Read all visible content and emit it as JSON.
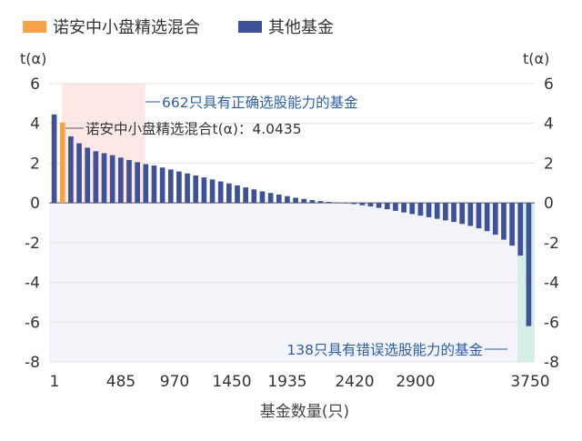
{
  "chart_data": {
    "type": "bar",
    "title": "",
    "legend": [
      {
        "label": "诺安中小盘精选混合",
        "color": "#F5A24A"
      },
      {
        "label": "其他基金",
        "color": "#3F5299"
      }
    ],
    "legend_position": "top-left",
    "xlabel": "基金数量(只)",
    "ylabel_left": "t(α)",
    "ylabel_right": "t(α)",
    "x_ticks": [
      "1",
      "485",
      "970",
      "1450",
      "1935",
      "2420",
      "2900",
      "3750"
    ],
    "y_ticks": [
      "6",
      "4",
      "2",
      "0",
      "-2",
      "-4",
      "-6",
      "-8"
    ],
    "ylim": [
      -8,
      6
    ],
    "grid": "horizontal",
    "highlight_index": 1,
    "series": [
      {
        "values": [
          4.45,
          4.04,
          3.35,
          3.0,
          2.78,
          2.6,
          2.5,
          2.4,
          2.28,
          2.16,
          2.05,
          1.95,
          1.88,
          1.78,
          1.68,
          1.58,
          1.48,
          1.38,
          1.28,
          1.18,
          1.08,
          0.98,
          0.88,
          0.78,
          0.68,
          0.58,
          0.5,
          0.42,
          0.34,
          0.26,
          0.2,
          0.14,
          0.09,
          0.05,
          0.02,
          -0.02,
          -0.06,
          -0.12,
          -0.18,
          -0.25,
          -0.32,
          -0.4,
          -0.48,
          -0.56,
          -0.64,
          -0.72,
          -0.8,
          -0.88,
          -0.96,
          -1.06,
          -1.16,
          -1.28,
          -1.42,
          -1.6,
          -1.85,
          -2.15,
          -2.65,
          -6.2
        ]
      }
    ],
    "annotations": [
      {
        "text": "662只具有正确选股能力的基金",
        "color": "#2E5FA3"
      },
      {
        "text": "诺安中小盘精选混合t(α)：4.0435",
        "color": "#333333"
      },
      {
        "text": "138只具有错误选股能力的基金",
        "color": "#2E5FA3"
      }
    ],
    "regions": [
      {
        "name": "positive-skill",
        "x_from": 1,
        "x_to": 662,
        "y_from": 0,
        "y_to": 6,
        "color": "#FDE8E6"
      },
      {
        "name": "negative-skill",
        "x_from": 3612,
        "x_to": 3750,
        "y_from": -8,
        "y_to": 0,
        "color": "#D6EFE6"
      }
    ]
  }
}
